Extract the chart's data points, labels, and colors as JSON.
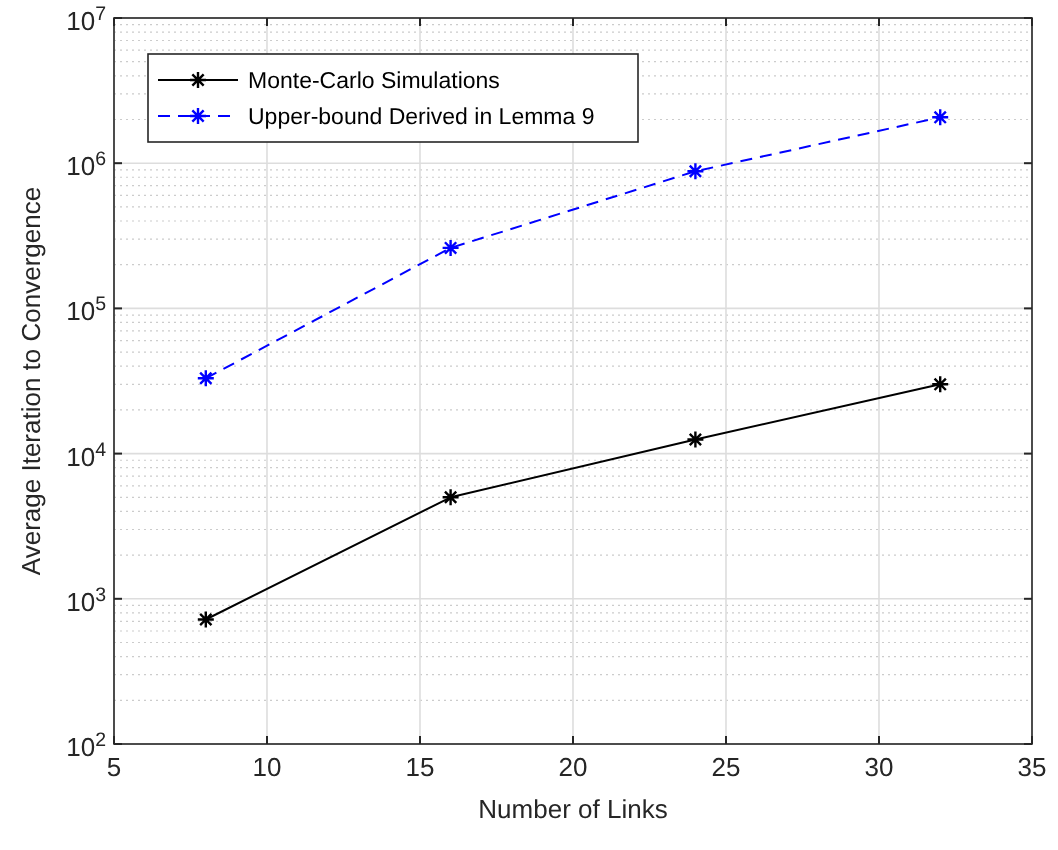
{
  "chart_data": {
    "type": "line",
    "xlabel": "Number of Links",
    "ylabel": "Average Iteration to Convergence",
    "x": [
      8,
      16,
      24,
      32
    ],
    "series": [
      {
        "name": "Monte-Carlo Simulations",
        "color": "#000000",
        "values": [
          720,
          5000,
          12500,
          30000
        ],
        "line_style": "solid",
        "marker": "cross"
      },
      {
        "name": "Upper-bound Derived in Lemma 9",
        "color": "#0000ff",
        "values": [
          33000,
          261000,
          880000,
          2070000
        ],
        "line_style": "dashed",
        "marker": "cross"
      }
    ],
    "xlim": [
      5,
      35
    ],
    "xticks": [
      5,
      10,
      15,
      20,
      25,
      30,
      35
    ],
    "ylim": [
      100,
      10000000
    ],
    "yticks": [
      {
        "value": 100,
        "label": "10$^{2}$"
      },
      {
        "value": 1000,
        "label": "10$^{3}$"
      },
      {
        "value": 10000,
        "label": "10$^{4}$"
      },
      {
        "value": 100000,
        "label": "10$^{5}$"
      },
      {
        "value": 1000000,
        "label": "10$^{6}$"
      },
      {
        "value": 10000000,
        "label": "10$^{7}$"
      }
    ],
    "log": "y",
    "grid": true,
    "legend": "top left"
  }
}
